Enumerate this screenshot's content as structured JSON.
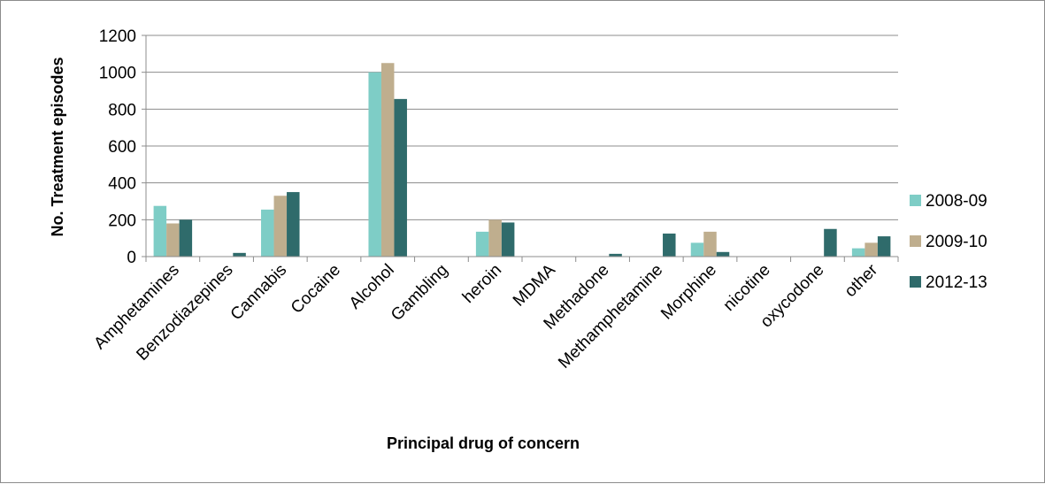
{
  "chart_data": {
    "type": "bar",
    "title": "",
    "xlabel": "Principal drug of concern",
    "ylabel": "No. Treatment episodes",
    "ylim": [
      0,
      1200
    ],
    "yticks": [
      0,
      200,
      400,
      600,
      800,
      1000,
      1200
    ],
    "grid": true,
    "legend_position": "right",
    "categories": [
      "Amphetamines",
      "Benzodiazepines",
      "Cannabis",
      "Cocaine",
      "Alcohol",
      "Gambling",
      "heroin",
      "MDMA",
      "Methadone",
      "Methamphetamine",
      "Morphine",
      "nicotine",
      "oxycodone",
      "other"
    ],
    "series": [
      {
        "name": "2008-09",
        "color": "#7ecdc6",
        "values": [
          275,
          0,
          255,
          0,
          1000,
          0,
          135,
          0,
          0,
          0,
          75,
          0,
          0,
          45
        ]
      },
      {
        "name": "2009-10",
        "color": "#bfae8e",
        "values": [
          180,
          0,
          330,
          0,
          1050,
          0,
          200,
          0,
          0,
          0,
          135,
          0,
          0,
          75
        ]
      },
      {
        "name": "2012-13",
        "color": "#2f6b6b",
        "values": [
          200,
          20,
          350,
          0,
          855,
          0,
          185,
          0,
          15,
          125,
          25,
          0,
          150,
          110
        ]
      }
    ]
  }
}
